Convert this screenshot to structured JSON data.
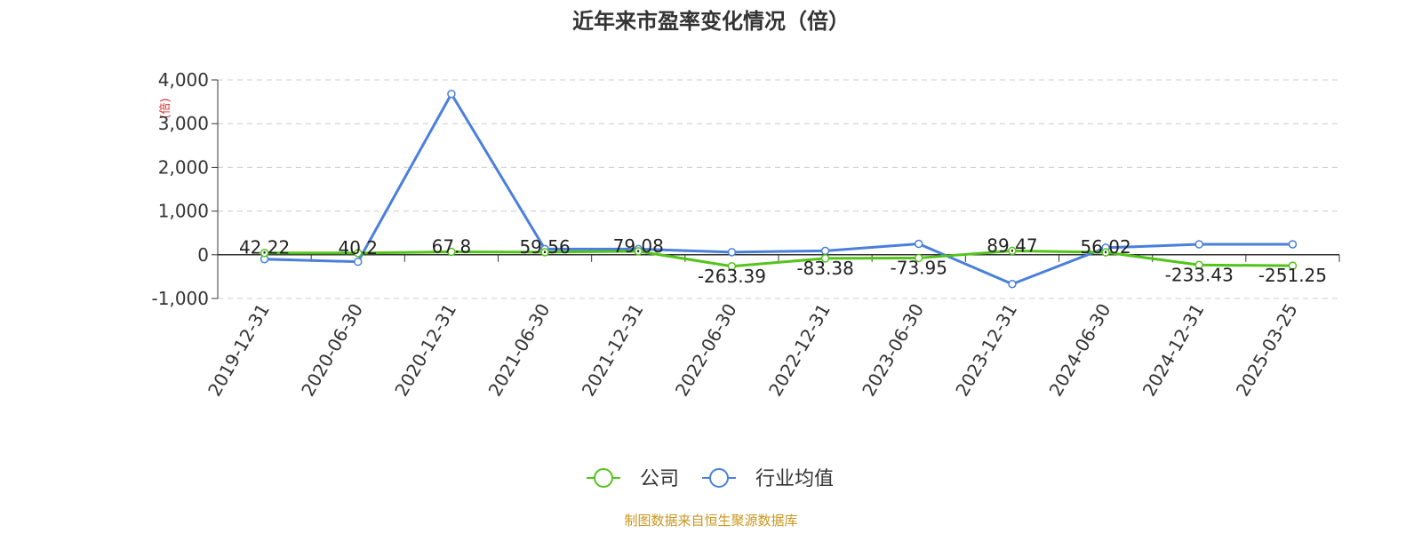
{
  "chart_data": {
    "type": "line",
    "title": "近年来市盈率变化情况（倍）",
    "ylabel": "(倍)",
    "xlabel": "",
    "categories": [
      "2019-12-31",
      "2020-06-30",
      "2020-12-31",
      "2021-06-30",
      "2021-12-31",
      "2022-06-30",
      "2022-12-31",
      "2023-06-30",
      "2023-12-31",
      "2024-06-30",
      "2024-12-31",
      "2025-03-25"
    ],
    "series": [
      {
        "name": "公司",
        "color": "#52c41a",
        "values": [
          42.22,
          40.2,
          67.8,
          59.56,
          79.08,
          -263.39,
          -83.38,
          -73.95,
          89.47,
          56.02,
          -233.43,
          -251.25
        ],
        "labels": [
          "42.22",
          "40.2",
          "67.8",
          "59.56",
          "79.08",
          "-263.39",
          "-83.38",
          "-73.95",
          "89.47",
          "56.02",
          "-233.43",
          "-251.25"
        ]
      },
      {
        "name": "行业均值",
        "color": "#4a7fdc",
        "values": [
          -100,
          -160,
          3680,
          130,
          130,
          60,
          90,
          250,
          -670,
          160,
          240,
          240
        ]
      }
    ],
    "yticks": [
      4000,
      3000,
      2000,
      1000,
      0,
      -1000
    ],
    "ytick_labels": [
      "4,000",
      "3,000",
      "2,000",
      "1,000",
      "0",
      "-1,000"
    ],
    "ylim": [
      -1000,
      4000
    ],
    "grid": true,
    "legend_position": "bottom-center",
    "source": "制图数据来自恒生聚源数据库"
  }
}
